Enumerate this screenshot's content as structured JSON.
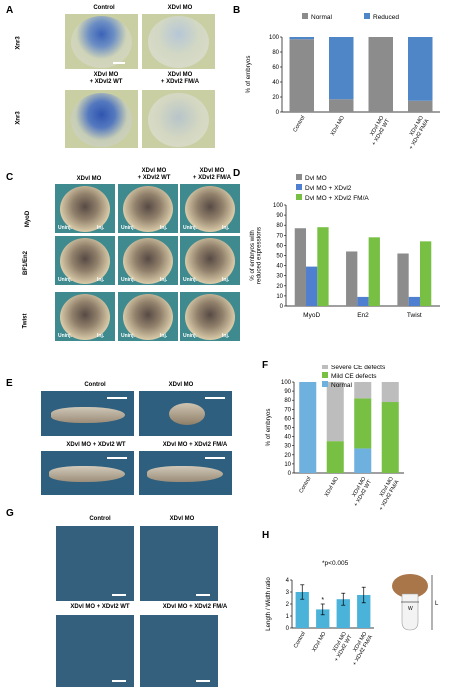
{
  "panels": {
    "A": {
      "label": "A",
      "col_titles": [
        "Control",
        "XDvl MO",
        "XDvl MO\n+ XDvl2 WT",
        "XDvl MO\n+ XDvl2 FM/A"
      ],
      "row_labels": [
        "Xnr3",
        "Xnr3"
      ]
    },
    "C": {
      "label": "C",
      "col_titles": [
        "XDvl MO",
        "XDvl MO\n+ XDvl2 WT",
        "XDvl MO\n+ XDvl2 FM/A"
      ],
      "row_labels": [
        "MyoD",
        "BF1/En2",
        "Twist"
      ],
      "uninj": "Uninj.",
      "inj": "Inj."
    },
    "E": {
      "label": "E",
      "titles": [
        "Control",
        "XDvl MO",
        "XDvl MO + XDvl2 WT",
        "XDvl MO + XDvl2 FM/A"
      ]
    },
    "G": {
      "label": "G",
      "titles": [
        "Control",
        "XDvl MO",
        "XDvl MO + XDvl2 WT",
        "XDvl MO + XDvl2 FM/A"
      ]
    }
  },
  "chart_data": [
    {
      "id": "B",
      "label": "B",
      "type": "bar",
      "stacked": true,
      "categories": [
        "Control",
        "XDvl MO",
        "XDvl MO\n+ XDvl2 WT",
        "XDvl MO\n+ XDvl2 FM/A"
      ],
      "series": [
        {
          "name": "Normal",
          "color": "#8c8c8c",
          "values": [
            97,
            17,
            100,
            15
          ]
        },
        {
          "name": "Reduced",
          "color": "#4f86c8",
          "values": [
            3,
            83,
            0,
            85
          ]
        }
      ],
      "ylabel": "% of embryos",
      "ylim": [
        0,
        100
      ],
      "yticks": [
        0,
        20,
        40,
        60,
        80,
        100
      ],
      "legend": "top"
    },
    {
      "id": "D",
      "label": "D",
      "type": "bar",
      "categories": [
        "MyoD",
        "En2",
        "Twist"
      ],
      "series": [
        {
          "name": "Dvl MO",
          "color": "#8c8c8c",
          "values": [
            77,
            54,
            52
          ]
        },
        {
          "name": "Dvl MO + XDvl2",
          "color": "#4f7fd0",
          "values": [
            39,
            9,
            9
          ]
        },
        {
          "name": "Dvl MO + XDvl2 FM/A",
          "color": "#77c043",
          "values": [
            78,
            68,
            64
          ]
        }
      ],
      "ylabel": "% of embryos with\nreduced expressions",
      "ylim": [
        0,
        100
      ],
      "yticks": [
        0,
        10,
        20,
        30,
        40,
        50,
        60,
        70,
        80,
        90,
        100
      ],
      "legend": "top-left"
    },
    {
      "id": "F",
      "label": "F",
      "type": "bar",
      "stacked": true,
      "categories": [
        "Control",
        "XDvl MO",
        "XDvl MO\n+ XDvl2 WT",
        "XDvl MO\n+ XDvl2 FM/A"
      ],
      "series": [
        {
          "name": "Normal",
          "color": "#6fb1de",
          "values": [
            100,
            0,
            27,
            0
          ]
        },
        {
          "name": "Mild CE defects",
          "color": "#77c043",
          "values": [
            0,
            35,
            55,
            78
          ]
        },
        {
          "name": "Severe CE defects",
          "color": "#bdbdbd",
          "values": [
            0,
            65,
            18,
            22
          ]
        }
      ],
      "legend_order": [
        "Severe CE defects",
        "Mild CE defects",
        "Normal"
      ],
      "ylabel": "% of embryos",
      "ylim": [
        0,
        100
      ],
      "yticks": [
        0,
        10,
        20,
        30,
        40,
        50,
        60,
        70,
        80,
        90,
        100
      ],
      "legend": "top"
    },
    {
      "id": "H",
      "label": "H",
      "type": "bar",
      "categories": [
        "Control",
        "XDvl MO",
        "XDvl MO\n+ XDvl2 WT",
        "XDvl MO\n+ XDvl2 FM/A"
      ],
      "values": [
        3.0,
        1.55,
        2.4,
        2.75
      ],
      "errors": [
        0.6,
        0.45,
        0.5,
        0.65
      ],
      "color": "#4bb3d9",
      "ylabel": "Length / Width ratio",
      "ylim": [
        0,
        4
      ],
      "yticks": [
        0,
        1,
        2,
        3,
        4
      ],
      "annotations": [
        "*",
        "*p<0.005"
      ],
      "diagram_labels": {
        "w": "W",
        "l": "L"
      }
    }
  ]
}
